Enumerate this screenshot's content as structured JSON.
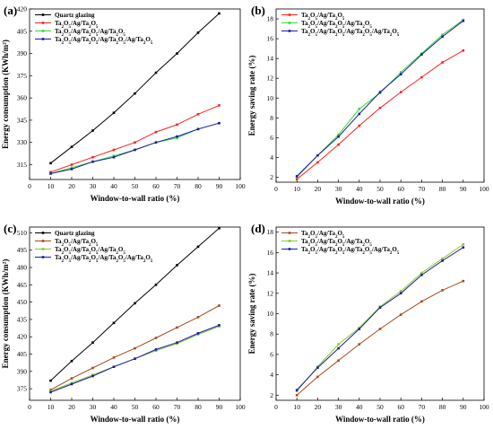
{
  "chart_data": [
    {
      "panel_label": "(a)",
      "type": "line",
      "xlabel": "Window-to-wall ratio (%)",
      "ylabel": "Energy consumption (KWh/m²)",
      "xlim": [
        0,
        100
      ],
      "ylim": [
        305,
        420
      ],
      "x_ticks": [
        0,
        10,
        20,
        30,
        40,
        50,
        60,
        70,
        80,
        90,
        100
      ],
      "y_ticks": [
        315,
        330,
        345,
        360,
        375,
        390,
        405,
        420
      ],
      "legend_position": "top-left",
      "series": [
        {
          "name": "Quartz glazing",
          "color": "#000000",
          "x": [
            10,
            20,
            30,
            40,
            50,
            60,
            70,
            80,
            90
          ],
          "y": [
            316,
            327,
            338,
            350,
            363,
            377,
            390,
            404,
            417
          ]
        },
        {
          "name": "Ta₂O₅/Ag/Ta₂O₅",
          "color": "#ff2020",
          "x": [
            10,
            20,
            30,
            40,
            50,
            60,
            70,
            80,
            90
          ],
          "y": [
            310,
            315,
            320,
            325,
            330,
            337,
            342,
            349,
            355
          ]
        },
        {
          "name": "Ta₂O₅/Ag/Ta₂O₅/Ag/Ta₂O₅",
          "color": "#33dd33",
          "x": [
            10,
            20,
            30,
            40,
            50,
            60,
            70,
            80,
            90
          ],
          "y": [
            309,
            313,
            317,
            321,
            325,
            330,
            333,
            339,
            343
          ]
        },
        {
          "name": "Ta₂O₅/Ag/Ta₂O₅/Ag/Ta₂O₅/Ag/Ta₂O₅",
          "color": "#1a1aaa",
          "x": [
            10,
            20,
            30,
            40,
            50,
            60,
            70,
            80,
            90
          ],
          "y": [
            309,
            312,
            317,
            320,
            325,
            330,
            334,
            339,
            343
          ]
        }
      ]
    },
    {
      "panel_label": "(b)",
      "type": "line",
      "xlabel": "Window-to-wall ratio (%)",
      "ylabel": "Energy saving rate (%)",
      "xlim": [
        0,
        100
      ],
      "ylim": [
        1.5,
        19
      ],
      "x_ticks": [
        0,
        10,
        20,
        30,
        40,
        50,
        60,
        70,
        80,
        90,
        100
      ],
      "y_ticks": [
        2,
        4,
        6,
        8,
        10,
        12,
        14,
        16,
        18
      ],
      "legend_position": "top-left",
      "series": [
        {
          "name": "Ta₂O₅/Ag/Ta₂O₅",
          "color": "#ff2020",
          "x": [
            10,
            20,
            30,
            40,
            50,
            60,
            70,
            80,
            90
          ],
          "y": [
            1.8,
            3.5,
            5.3,
            7.2,
            9.0,
            10.6,
            12.1,
            13.6,
            14.8
          ]
        },
        {
          "name": "Ta₂O₅/Ag/Ta₂O₅/Ag/Ta₂O₅",
          "color": "#33dd33",
          "x": [
            10,
            20,
            30,
            40,
            50,
            60,
            70,
            80,
            90
          ],
          "y": [
            2.0,
            4.2,
            6.3,
            8.9,
            10.5,
            12.6,
            14.5,
            16.4,
            17.9
          ]
        },
        {
          "name": "Ta₂O₅/Ag/Ta₂O₅/Ag/Ta₂O₅/Ag/Ta₂O₅",
          "color": "#1a1aaa",
          "x": [
            10,
            20,
            30,
            40,
            50,
            60,
            70,
            80,
            90
          ],
          "y": [
            2.1,
            4.2,
            6.1,
            8.4,
            10.6,
            12.4,
            14.4,
            16.2,
            17.8
          ]
        }
      ]
    },
    {
      "panel_label": "(c)",
      "type": "line",
      "xlabel": "Window-to-wall ratio (%)",
      "ylabel": "Energy consumption (KWh/m²)",
      "xlim": [
        0,
        100
      ],
      "ylim": [
        365,
        515
      ],
      "x_ticks": [
        0,
        10,
        20,
        30,
        40,
        50,
        60,
        70,
        80,
        90,
        100
      ],
      "y_ticks": [
        375,
        390,
        405,
        420,
        435,
        450,
        465,
        480,
        495,
        510
      ],
      "legend_position": "top-left",
      "series": [
        {
          "name": "Quartz glazing",
          "color": "#000000",
          "x": [
            10,
            20,
            30,
            40,
            50,
            60,
            70,
            80,
            90
          ],
          "y": [
            382,
            399,
            415,
            432,
            449,
            465,
            482,
            498,
            514
          ]
        },
        {
          "name": "Ta₂O₅/Ag/Ta₂O₅",
          "color": "#a84a1a",
          "x": [
            10,
            20,
            30,
            40,
            50,
            60,
            70,
            80,
            90
          ],
          "y": [
            374,
            384,
            393,
            402,
            410,
            419,
            428,
            437,
            447
          ]
        },
        {
          "name": "Ta₂O₅/Ag/Ta₂O₅/Ag/Ta₂O₅",
          "color": "#88cc22",
          "x": [
            10,
            20,
            30,
            40,
            50,
            60,
            70,
            80,
            90
          ],
          "y": [
            373,
            380,
            387,
            394,
            401,
            408,
            414,
            422,
            429
          ]
        },
        {
          "name": "Ta₂O₅/Ag/Ta₂O₅/Ag/Ta₂O₅/Ag/Ta₂O₅",
          "color": "#1a1aaa",
          "x": [
            10,
            20,
            30,
            40,
            50,
            60,
            70,
            80,
            90
          ],
          "y": [
            372,
            379,
            386,
            394,
            401,
            409,
            415,
            423,
            430
          ]
        }
      ]
    },
    {
      "panel_label": "(d)",
      "type": "line",
      "xlabel": "Window-to-wall ratio (%)",
      "ylabel": "Energy saving rate (%)",
      "xlim": [
        0,
        100
      ],
      "ylim": [
        1.5,
        18.5
      ],
      "x_ticks": [
        0,
        10,
        20,
        30,
        40,
        50,
        60,
        70,
        80,
        90,
        100
      ],
      "y_ticks": [
        2,
        4,
        6,
        8,
        10,
        12,
        14,
        16,
        18
      ],
      "legend_position": "top-left",
      "series": [
        {
          "name": "Ta₂O₅/Ag/Ta₂O₅",
          "color": "#a84a1a",
          "x": [
            10,
            20,
            30,
            40,
            50,
            60,
            70,
            80,
            90
          ],
          "y": [
            2.0,
            3.8,
            5.4,
            7.0,
            8.5,
            9.9,
            11.2,
            12.3,
            13.2
          ]
        },
        {
          "name": "Ta₂O₅/Ag/Ta₂O₅/Ag/Ta₂O₅",
          "color": "#88cc22",
          "x": [
            10,
            20,
            30,
            40,
            50,
            60,
            70,
            80,
            90
          ],
          "y": [
            2.4,
            4.8,
            7.0,
            8.6,
            10.7,
            12.2,
            14.0,
            15.4,
            16.8
          ]
        },
        {
          "name": "Ta₂O₅/Ag/Ta₂O₅/Ag/Ta₂O₅/Ag/Ta₂O₅",
          "color": "#1a1aaa",
          "x": [
            10,
            20,
            30,
            40,
            50,
            60,
            70,
            80,
            90
          ],
          "y": [
            2.5,
            4.7,
            6.6,
            8.5,
            10.6,
            12.0,
            13.8,
            15.2,
            16.5
          ]
        }
      ]
    }
  ]
}
